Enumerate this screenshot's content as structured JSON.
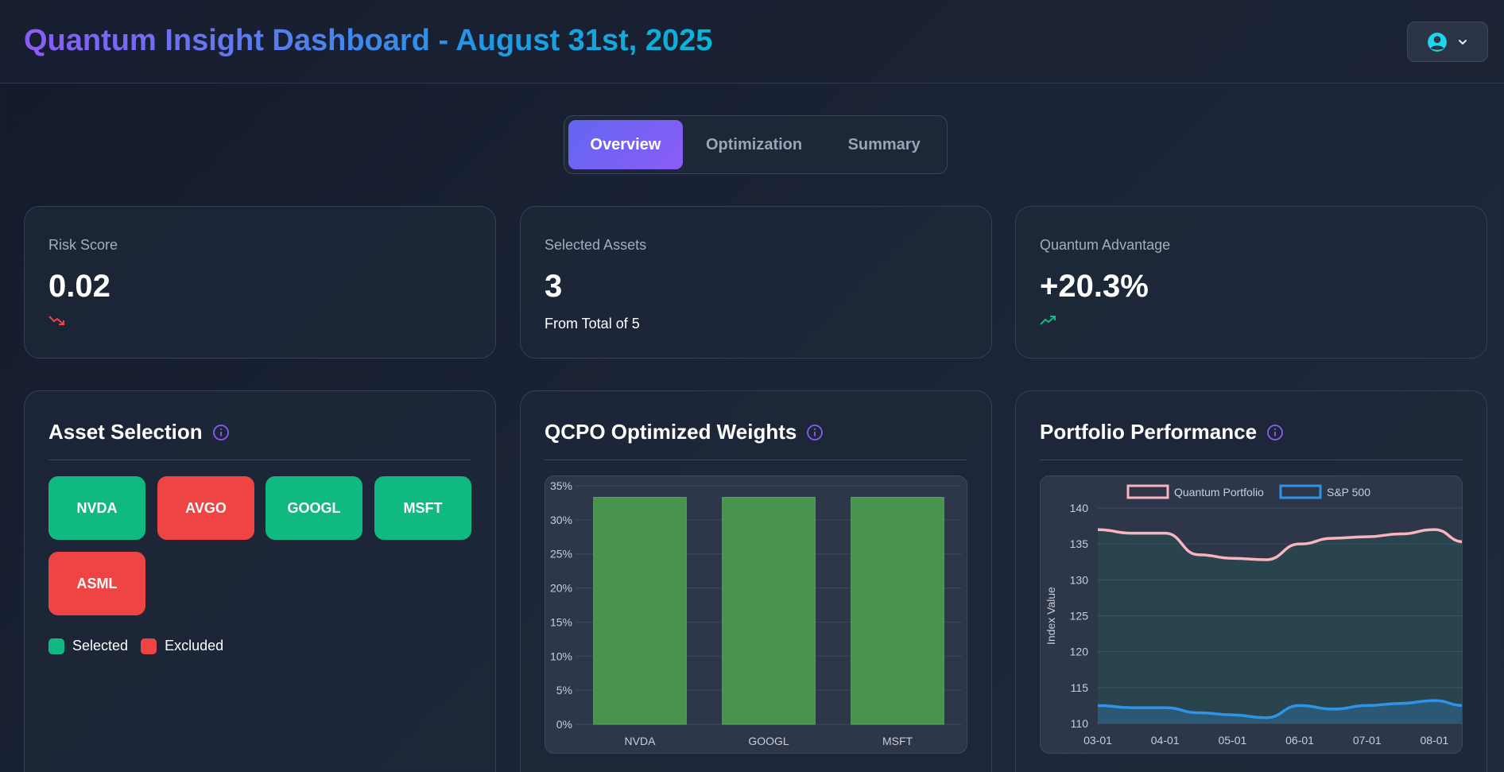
{
  "header": {
    "title": "Quantum Insight Dashboard - August 31st, 2025"
  },
  "user_menu": {
    "icon": "user-circle-icon",
    "chevron": "chevron-down-icon"
  },
  "tabs": [
    {
      "label": "Overview",
      "active": true
    },
    {
      "label": "Optimization",
      "active": false
    },
    {
      "label": "Summary",
      "active": false
    }
  ],
  "stats": {
    "risk": {
      "label": "Risk Score",
      "value": "0.02",
      "trend": "down",
      "trend_color": "#ef4444"
    },
    "assets": {
      "label": "Selected Assets",
      "value": "3",
      "sub": "From Total of 5"
    },
    "advantage": {
      "label": "Quantum Advantage",
      "value": "+20.3%",
      "trend": "up",
      "trend_color": "#10b981"
    }
  },
  "asset_selection": {
    "title": "Asset Selection",
    "assets": [
      {
        "ticker": "NVDA",
        "selected": true
      },
      {
        "ticker": "AVGO",
        "selected": false
      },
      {
        "ticker": "GOOGL",
        "selected": true
      },
      {
        "ticker": "MSFT",
        "selected": true
      },
      {
        "ticker": "ASML",
        "selected": false
      }
    ],
    "legend": {
      "selected": "Selected",
      "excluded": "Excluded"
    },
    "colors": {
      "selected": "#10b981",
      "excluded": "#ef4444"
    }
  },
  "weights_panel": {
    "title": "QCPO Optimized Weights"
  },
  "performance_panel": {
    "title": "Portfolio Performance"
  },
  "chart_data": [
    {
      "type": "bar",
      "categories": [
        "NVDA",
        "GOOGL",
        "MSFT"
      ],
      "values": [
        33.3,
        33.3,
        33.3
      ],
      "ylim": [
        0,
        35
      ],
      "yticks": [
        "0%",
        "5%",
        "10%",
        "15%",
        "20%",
        "25%",
        "30%",
        "35%"
      ],
      "bar_color": "#48934e",
      "grid": true
    },
    {
      "type": "area",
      "x": [
        "03-01",
        "03-15",
        "04-01",
        "04-15",
        "05-01",
        "05-15",
        "06-01",
        "06-15",
        "07-01",
        "07-15",
        "08-01",
        "08-15"
      ],
      "series": [
        {
          "name": "Quantum Portfolio",
          "values": [
            137,
            136.5,
            136.5,
            133.5,
            133,
            132.8,
            135,
            135.8,
            136,
            136.4,
            137,
            135.3
          ],
          "color": "#f9b4c0"
        },
        {
          "name": "S&P 500",
          "values": [
            112.5,
            112.2,
            112.2,
            111.5,
            111.2,
            110.8,
            112.5,
            112,
            112.5,
            112.8,
            113.2,
            112.5
          ],
          "color": "#2f93e8"
        }
      ],
      "ylabel": "Index Value",
      "ylim": [
        110,
        140
      ],
      "yticks": [
        110,
        115,
        120,
        125,
        130,
        135,
        140
      ],
      "xticks": [
        "03-01",
        "04-01",
        "05-01",
        "06-01",
        "07-01",
        "08-01"
      ],
      "legend_position": "top",
      "grid": true
    }
  ]
}
